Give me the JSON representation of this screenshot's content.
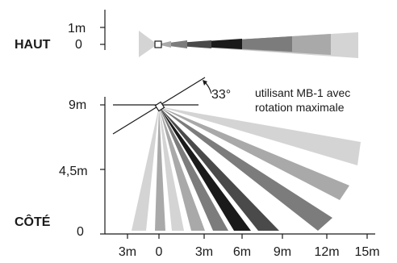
{
  "top_view": {
    "label": "HAUT",
    "y_ticks": [
      "1m",
      "0"
    ]
  },
  "side_view": {
    "label": "CÔTÉ",
    "y_ticks": [
      "9m",
      "4,5m",
      "0"
    ],
    "x_ticks": [
      "3m",
      "0",
      "3m",
      "6m",
      "9m",
      "12m",
      "15m"
    ],
    "angle_label": "33°",
    "note_lines": [
      "utilisant MB-1 avec",
      "rotation maximale"
    ]
  },
  "colors": {
    "beam_shades": [
      "#d4d4d4",
      "#a9a9a9",
      "#7c7c7c",
      "#4a4a4a",
      "#1a1a1a"
    ],
    "ink": "#1a1a1a"
  }
}
